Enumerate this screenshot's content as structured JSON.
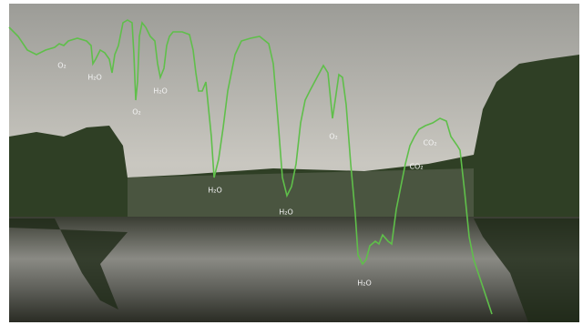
{
  "labels": [
    "O₂",
    "H₂O",
    "O₂",
    "H₂O",
    "H₂O",
    "H₂O",
    "O₂",
    "CO₂",
    "CO₂",
    "H₂O"
  ]
}
